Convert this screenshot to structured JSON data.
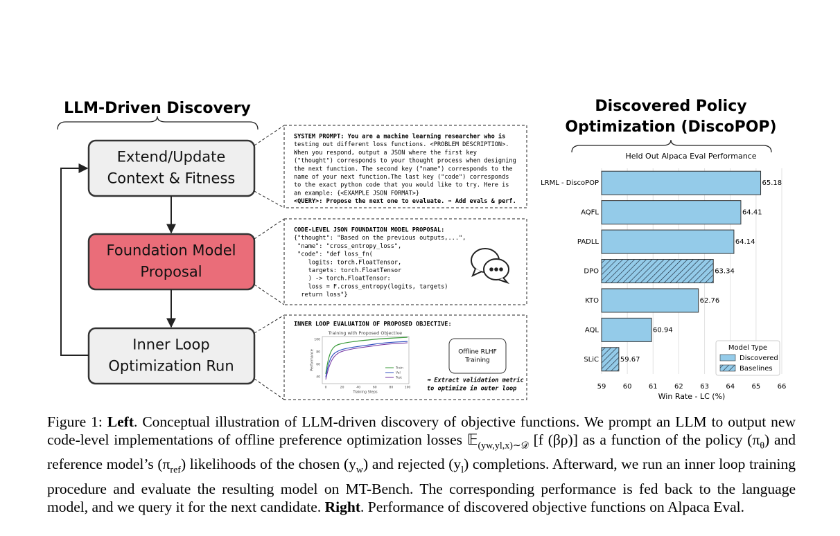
{
  "diagram": {
    "title": "LLM-Driven Discovery",
    "nodes": [
      {
        "lines": [
          "Extend/Update",
          "Context & Fitness"
        ]
      },
      {
        "lines": [
          "Foundation Model",
          "Proposal"
        ]
      },
      {
        "lines": [
          "Inner Loop",
          "Optimization Run"
        ]
      }
    ],
    "system_prompt": [
      "SYSTEM PROMPT: You are a machine learning researcher who is",
      "testing out different loss functions. <PROBLEM DESCRIPTION>.",
      "When you respond, output a JSON where the first key",
      "(\"thought\") corresponds to your thought process when designing",
      "the next function. The second key (\"name\") corresponds to the",
      "name of your next function.The last key (\"code\") corresponds",
      "to the exact python code that you would like to try. Here is",
      "an example: {<EXAMPLE JSON FORMAT>}",
      "<QUERY>: Propose the next one to evaluate. ➡ Add evals & perf."
    ],
    "proposal": [
      "CODE-LEVEL JSON FOUNDATION MODEL PROPOSAL:",
      "{\"thought\": \"Based on the previous outputs,...\",",
      " \"name\": \"cross_entropy_loss\",",
      " \"code\": \"def loss_fn(",
      "    logits: torch.FloatTensor,",
      "    targets: torch.FloatTensor",
      "    ) -> torch.FloatTensor:",
      "    loss = F.cross_entropy(logits, targets)",
      "  return loss\"}"
    ],
    "evaluation": {
      "heading": "INNER LOOP EVALUATION OF PROPOSED OBJECTIVE:",
      "plot_title": "Training with Proposed Objective",
      "plot_ylabel": "Performance",
      "plot_xlabel": "Training Steps",
      "plot_yticks": [
        100,
        80,
        60,
        40
      ],
      "plot_xticks": [
        0,
        20,
        40,
        60,
        80,
        100
      ],
      "plot_legend": [
        "Train",
        "Val",
        "Test"
      ],
      "box": [
        "Offline RLHF",
        "Training"
      ],
      "note": [
        "➡ Extract validation metric",
        "to optimize in outer loop"
      ]
    }
  },
  "right_title": [
    "Discovered Policy",
    "Optimization (DiscoPOP)"
  ],
  "chart_data": {
    "type": "bar",
    "orientation": "horizontal",
    "title": "Held Out Alpaca Eval Performance",
    "xlabel": "Win Rate - LC (%)",
    "categories": [
      "LRML - DiscoPOP",
      "AQFL",
      "PADLL",
      "DPO",
      "KTO",
      "AQL",
      "SLiC"
    ],
    "series": [
      {
        "name": "Discovered",
        "color": "#94cbe9",
        "hatch": false,
        "values": [
          65.18,
          64.41,
          64.14,
          null,
          62.76,
          60.94,
          null
        ]
      },
      {
        "name": "Baselines",
        "color": "#94cbe9",
        "hatch": true,
        "values": [
          null,
          null,
          null,
          63.34,
          null,
          null,
          59.67
        ]
      }
    ],
    "xlim": [
      59,
      66
    ],
    "xticks": [
      59,
      60,
      61,
      62,
      63,
      64,
      65,
      66
    ],
    "grid": true,
    "legend_title": "Model Type",
    "legend_position": "lower right"
  },
  "caption": {
    "segments": [
      {
        "text": "Figure 1: "
      },
      {
        "text": "Left",
        "style": "bold"
      },
      {
        "text": ". Conceptual illustration of LLM-driven discovery of objective functions. We prompt an LLM to output new code-level implementations of offline preference optimization losses 𝔼"
      },
      {
        "text": "(yw,yl,x)∼𝒟",
        "style": "sub"
      },
      {
        "text": " [f (βρ)] as a function of the policy (π"
      },
      {
        "text": "θ",
        "style": "sub"
      },
      {
        "text": ") and reference model’s (π"
      },
      {
        "text": "ref",
        "style": "sub"
      },
      {
        "text": ") likelihoods of the chosen (y"
      },
      {
        "text": "w",
        "style": "sub"
      },
      {
        "text": ") and rejected (y"
      },
      {
        "text": "l",
        "style": "sub"
      },
      {
        "text": ") completions. Afterward, we run an inner loop training procedure and evaluate the resulting model on MT-Bench. The corresponding performance is fed back to the language model, and we query it for the next candidate. "
      },
      {
        "text": "Right",
        "style": "bold"
      },
      {
        "text": ". Performance of discovered objective functions on Alpaca Eval."
      }
    ]
  }
}
